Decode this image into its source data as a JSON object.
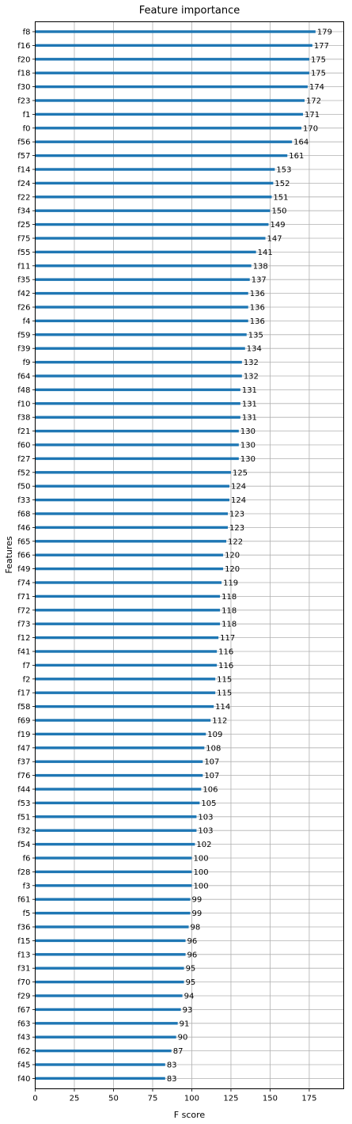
{
  "chart_data": {
    "type": "bar",
    "orientation": "horizontal",
    "title": "Feature importance",
    "xlabel": "F score",
    "ylabel": "Features",
    "xlim": [
      0,
      197
    ],
    "xticks": [
      0,
      25,
      50,
      75,
      100,
      125,
      150,
      175
    ],
    "grid": true,
    "bar_color": "#1f77b4",
    "features": [
      "f8",
      "f16",
      "f20",
      "f18",
      "f30",
      "f23",
      "f1",
      "f0",
      "f56",
      "f57",
      "f14",
      "f24",
      "f22",
      "f34",
      "f25",
      "f75",
      "f55",
      "f11",
      "f35",
      "f42",
      "f26",
      "f4",
      "f59",
      "f39",
      "f9",
      "f64",
      "f48",
      "f10",
      "f38",
      "f21",
      "f60",
      "f27",
      "f52",
      "f50",
      "f33",
      "f68",
      "f46",
      "f65",
      "f66",
      "f49",
      "f74",
      "f71",
      "f72",
      "f73",
      "f12",
      "f41",
      "f7",
      "f2",
      "f17",
      "f58",
      "f69",
      "f19",
      "f47",
      "f37",
      "f76",
      "f44",
      "f53",
      "f51",
      "f32",
      "f54",
      "f6",
      "f28",
      "f3",
      "f61",
      "f5",
      "f36",
      "f15",
      "f13",
      "f31",
      "f70",
      "f29",
      "f67",
      "f63",
      "f43",
      "f62",
      "f45",
      "f40"
    ],
    "values": [
      179,
      177,
      175,
      175,
      174,
      172,
      171,
      170,
      164,
      161,
      153,
      152,
      151,
      150,
      149,
      147,
      141,
      138,
      137,
      136,
      136,
      136,
      135,
      134,
      132,
      132,
      131,
      131,
      131,
      130,
      130,
      130,
      125,
      124,
      124,
      123,
      123,
      122,
      120,
      120,
      119,
      118,
      118,
      118,
      117,
      116,
      116,
      115,
      115,
      114,
      112,
      109,
      108,
      107,
      107,
      106,
      105,
      103,
      103,
      102,
      100,
      100,
      100,
      99,
      99,
      98,
      96,
      96,
      95,
      95,
      94,
      93,
      91,
      90,
      87,
      83,
      83
    ]
  }
}
